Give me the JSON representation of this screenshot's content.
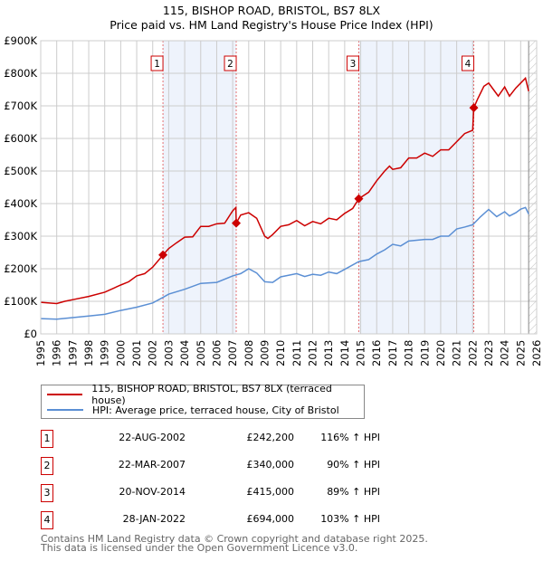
{
  "title": "115, BISHOP ROAD, BRISTOL, BS7 8LX",
  "subtitle": "Price paid vs. HM Land Registry's House Price Index (HPI)",
  "chart_data": {
    "type": "line",
    "ylim": [
      0,
      900000
    ],
    "xlim": [
      1995,
      2026
    ],
    "yticks": [
      {
        "v": 0,
        "label": "£0"
      },
      {
        "v": 100000,
        "label": "£100K"
      },
      {
        "v": 200000,
        "label": "£200K"
      },
      {
        "v": 300000,
        "label": "£300K"
      },
      {
        "v": 400000,
        "label": "£400K"
      },
      {
        "v": 500000,
        "label": "£500K"
      },
      {
        "v": 600000,
        "label": "£600K"
      },
      {
        "v": 700000,
        "label": "£700K"
      },
      {
        "v": 800000,
        "label": "£800K"
      },
      {
        "v": 900000,
        "label": "£900K"
      }
    ],
    "xticks": [
      "1995",
      "1996",
      "1997",
      "1998",
      "1999",
      "2000",
      "2001",
      "2002",
      "2003",
      "2004",
      "2005",
      "2006",
      "2007",
      "2008",
      "2009",
      "2010",
      "2011",
      "2012",
      "2013",
      "2014",
      "2015",
      "2016",
      "2017",
      "2018",
      "2019",
      "2020",
      "2021",
      "2022",
      "2023",
      "2024",
      "2025",
      "2026"
    ],
    "grid": true,
    "forecast_start": 2025.5,
    "series": [
      {
        "name": "115, BISHOP ROAD, BRISTOL, BS7 8LX (terraced house)",
        "color": "#cc0000",
        "x": [
          1995,
          1996,
          1996.5,
          1997,
          1998,
          1999,
          2000,
          2000.5,
          2001,
          2001.5,
          2002,
          2002.64,
          2003,
          2003.5,
          2004,
          2004.5,
          2005,
          2005.5,
          2006,
          2006.5,
          2007,
          2007.2,
          2007.22,
          2007.5,
          2008,
          2008.5,
          2009,
          2009.2,
          2009.5,
          2010,
          2010.5,
          2011,
          2011.5,
          2012,
          2012.5,
          2013,
          2013.5,
          2014,
          2014.5,
          2014.88,
          2015.5,
          2016,
          2016.5,
          2016.8,
          2017,
          2017.5,
          2018,
          2018.5,
          2019,
          2019.5,
          2020,
          2020.5,
          2021,
          2021.5,
          2022,
          2022.07,
          2022.3,
          2022.7,
          2023,
          2023.3,
          2023.6,
          2024,
          2024.3,
          2024.7,
          2025,
          2025.3,
          2025.5
        ],
        "y": [
          97,
          93,
          100,
          105,
          115,
          128,
          150,
          160,
          178,
          185,
          205,
          242,
          262,
          280,
          297,
          298,
          330,
          330,
          338,
          340,
          378,
          388,
          340,
          365,
          372,
          355,
          300,
          293,
          305,
          330,
          335,
          348,
          332,
          345,
          338,
          355,
          350,
          370,
          385,
          415,
          435,
          470,
          500,
          515,
          505,
          510,
          540,
          540,
          555,
          545,
          565,
          565,
          590,
          615,
          625,
          694,
          720,
          760,
          770,
          750,
          730,
          758,
          730,
          755,
          770,
          785,
          745
        ],
        "unit": "thousands GBP"
      },
      {
        "name": "HPI: Average price, terraced house, City of Bristol",
        "color": "#5b8fd4",
        "x": [
          1995,
          1996,
          1997,
          1998,
          1999,
          2000,
          2001,
          2002,
          2002.64,
          2003,
          2004,
          2005,
          2006,
          2007,
          2007.5,
          2008,
          2008.5,
          2009,
          2009.5,
          2010,
          2011,
          2011.5,
          2012,
          2012.5,
          2013,
          2013.5,
          2014,
          2014.88,
          2015.5,
          2016,
          2016.5,
          2017,
          2017.5,
          2018,
          2019,
          2019.5,
          2020,
          2020.5,
          2021,
          2021.5,
          2022,
          2022.5,
          2023,
          2023.5,
          2024,
          2024.3,
          2024.7,
          2025,
          2025.3,
          2025.5
        ],
        "y": [
          47,
          45,
          50,
          55,
          60,
          72,
          82,
          95,
          112,
          122,
          137,
          155,
          158,
          178,
          185,
          200,
          187,
          160,
          158,
          175,
          185,
          176,
          183,
          180,
          190,
          185,
          198,
          222,
          228,
          245,
          258,
          275,
          270,
          285,
          290,
          290,
          300,
          300,
          322,
          328,
          335,
          360,
          382,
          360,
          375,
          362,
          372,
          383,
          388,
          368
        ],
        "unit": "thousands GBP"
      }
    ],
    "sales": [
      {
        "n": "1",
        "x": 2002.64,
        "date": "22-AUG-2002",
        "price": "£242,200",
        "value": 242.2,
        "hpi": "116% ↑ HPI"
      },
      {
        "n": "2",
        "x": 2007.22,
        "date": "22-MAR-2007",
        "price": "£340,000",
        "value": 340,
        "hpi": "90% ↑ HPI"
      },
      {
        "n": "3",
        "x": 2014.88,
        "date": "20-NOV-2014",
        "price": "£415,000",
        "value": 415,
        "hpi": "89% ↑ HPI"
      },
      {
        "n": "4",
        "x": 2022.07,
        "date": "28-JAN-2022",
        "price": "£694,000",
        "value": 694,
        "hpi": "103% ↑ HPI"
      }
    ]
  },
  "legend": {
    "property": "115, BISHOP ROAD, BRISTOL, BS7 8LX (terraced house)",
    "hpi": "HPI: Average price, terraced house, City of Bristol"
  },
  "footer": {
    "line1": "Contains HM Land Registry data © Crown copyright and database right 2025.",
    "line2": "This data is licensed under the Open Government Licence v3.0."
  }
}
